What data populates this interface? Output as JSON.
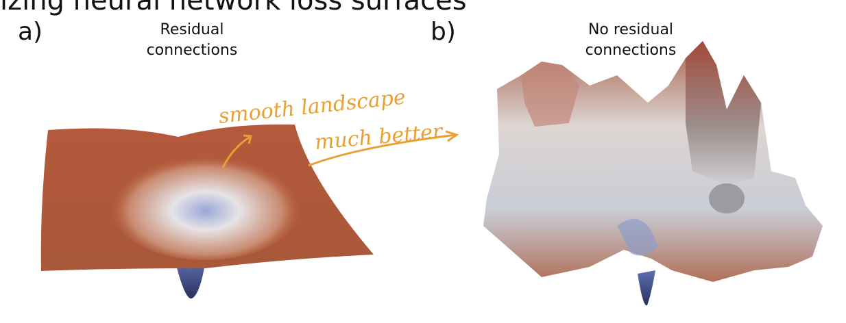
{
  "header": {
    "title": "izing neural network loss surfaces"
  },
  "panels": [
    {
      "label": "a)",
      "caption": [
        "Residual",
        "connections"
      ]
    },
    {
      "label": "b)",
      "caption": [
        "No residual",
        "connections"
      ]
    }
  ],
  "annotation": [
    "smooth landscape",
    "much better"
  ]
}
